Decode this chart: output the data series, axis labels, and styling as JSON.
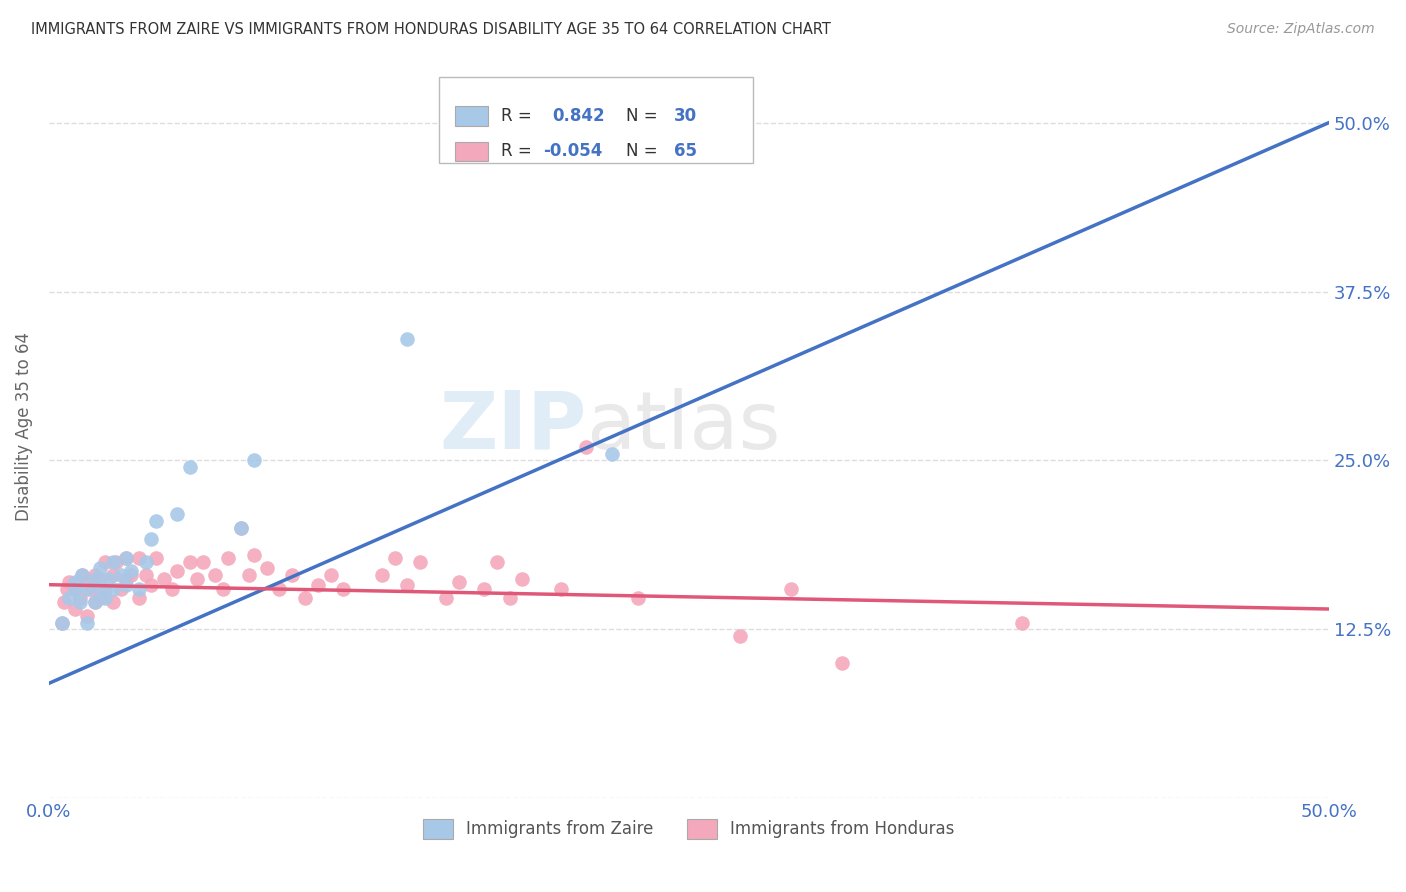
{
  "title": "IMMIGRANTS FROM ZAIRE VS IMMIGRANTS FROM HONDURAS DISABILITY AGE 35 TO 64 CORRELATION CHART",
  "source": "Source: ZipAtlas.com",
  "ylabel": "Disability Age 35 to 64",
  "xlim": [
    0.0,
    0.5
  ],
  "ylim": [
    0.0,
    0.55
  ],
  "xticks": [
    0.0,
    0.125,
    0.25,
    0.375,
    0.5
  ],
  "xtick_labels": [
    "0.0%",
    "",
    "",
    "",
    "50.0%"
  ],
  "yticks": [
    0.0,
    0.125,
    0.25,
    0.375,
    0.5
  ],
  "ytick_labels_left": [
    "",
    "",
    "",
    "",
    ""
  ],
  "ytick_labels_right": [
    "",
    "12.5%",
    "25.0%",
    "37.5%",
    "50.0%"
  ],
  "zaire_color": "#a8c8e8",
  "honduras_color": "#f4a8bc",
  "zaire_line_color": "#4472c4",
  "honduras_line_color": "#e05878",
  "R_zaire": 0.842,
  "N_zaire": 30,
  "R_honduras": -0.054,
  "N_honduras": 65,
  "legend_label_zaire": "Immigrants from Zaire",
  "legend_label_honduras": "Immigrants from Honduras",
  "watermark_zip": "ZIP",
  "watermark_atlas": "atlas",
  "background_color": "#ffffff",
  "grid_color": "#dddddd",
  "zaire_points_x": [
    0.005,
    0.008,
    0.01,
    0.01,
    0.012,
    0.013,
    0.015,
    0.015,
    0.018,
    0.018,
    0.02,
    0.02,
    0.022,
    0.023,
    0.025,
    0.025,
    0.028,
    0.03,
    0.03,
    0.032,
    0.035,
    0.038,
    0.04,
    0.042,
    0.05,
    0.055,
    0.075,
    0.08,
    0.14,
    0.22
  ],
  "zaire_points_y": [
    0.13,
    0.148,
    0.155,
    0.16,
    0.145,
    0.165,
    0.13,
    0.155,
    0.145,
    0.162,
    0.155,
    0.17,
    0.148,
    0.162,
    0.155,
    0.175,
    0.165,
    0.158,
    0.178,
    0.168,
    0.155,
    0.175,
    0.192,
    0.205,
    0.21,
    0.245,
    0.2,
    0.25,
    0.34,
    0.255
  ],
  "honduras_points_x": [
    0.005,
    0.006,
    0.007,
    0.008,
    0.01,
    0.01,
    0.012,
    0.013,
    0.015,
    0.015,
    0.016,
    0.018,
    0.018,
    0.02,
    0.02,
    0.022,
    0.022,
    0.025,
    0.025,
    0.026,
    0.028,
    0.03,
    0.03,
    0.032,
    0.035,
    0.035,
    0.038,
    0.04,
    0.042,
    0.045,
    0.048,
    0.05,
    0.055,
    0.058,
    0.06,
    0.065,
    0.068,
    0.07,
    0.075,
    0.078,
    0.08,
    0.085,
    0.09,
    0.095,
    0.1,
    0.105,
    0.11,
    0.115,
    0.13,
    0.135,
    0.14,
    0.145,
    0.155,
    0.16,
    0.17,
    0.175,
    0.18,
    0.185,
    0.2,
    0.21,
    0.23,
    0.27,
    0.29,
    0.31,
    0.38
  ],
  "honduras_points_y": [
    0.13,
    0.145,
    0.155,
    0.16,
    0.14,
    0.155,
    0.148,
    0.165,
    0.135,
    0.16,
    0.155,
    0.145,
    0.165,
    0.148,
    0.162,
    0.155,
    0.175,
    0.145,
    0.165,
    0.175,
    0.155,
    0.162,
    0.178,
    0.165,
    0.148,
    0.178,
    0.165,
    0.158,
    0.178,
    0.162,
    0.155,
    0.168,
    0.175,
    0.162,
    0.175,
    0.165,
    0.155,
    0.178,
    0.2,
    0.165,
    0.18,
    0.17,
    0.155,
    0.165,
    0.148,
    0.158,
    0.165,
    0.155,
    0.165,
    0.178,
    0.158,
    0.175,
    0.148,
    0.16,
    0.155,
    0.175,
    0.148,
    0.162,
    0.155,
    0.26,
    0.148,
    0.12,
    0.155,
    0.1,
    0.13
  ],
  "zaire_line_x0": 0.0,
  "zaire_line_x1": 0.5,
  "zaire_line_y0": 0.085,
  "zaire_line_y1": 0.5,
  "honduras_line_x0": 0.0,
  "honduras_line_x1": 0.5,
  "honduras_line_y0": 0.158,
  "honduras_line_y1": 0.14
}
